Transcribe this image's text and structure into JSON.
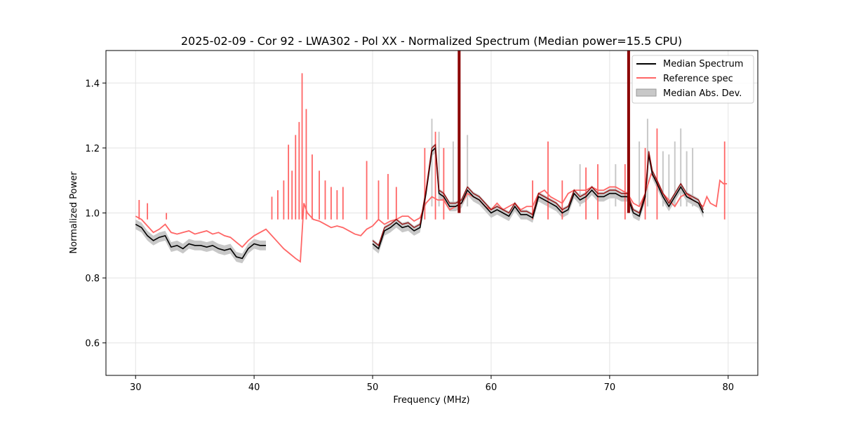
{
  "chart_data": {
    "type": "line",
    "title": "2025-02-09 - Cor 92 - LWA302 - Pol XX - Normalized Spectrum (Median power=15.5 CPU)",
    "xlabel": "Frequency (MHz)",
    "ylabel": "Normalized Power",
    "xlim": [
      27.5,
      82.5
    ],
    "ylim": [
      0.5,
      1.5
    ],
    "xticks": [
      30,
      40,
      50,
      60,
      70,
      80
    ],
    "yticks": [
      0.6,
      0.8,
      1.0,
      1.2,
      1.4
    ],
    "grid": true,
    "legend_position": "top-right",
    "colors": {
      "median": "#000000",
      "reference": "#ff6666",
      "mad": "#c8c8c8",
      "overlap": "#8b0000"
    },
    "series": [
      {
        "name": "Median Spectrum",
        "x": [
          30.0,
          30.5,
          31.0,
          31.5,
          32.0,
          32.5,
          33.0,
          33.5,
          34.0,
          34.5,
          35.0,
          35.5,
          36.0,
          36.5,
          37.0,
          37.5,
          38.0,
          38.5,
          39.0,
          39.5,
          40.0,
          40.5,
          41.0
        ],
        "y": [
          0.965,
          0.955,
          0.93,
          0.915,
          0.925,
          0.93,
          0.895,
          0.9,
          0.89,
          0.905,
          0.9,
          0.9,
          0.895,
          0.9,
          0.89,
          0.885,
          0.89,
          0.865,
          0.86,
          0.89,
          0.905,
          0.9,
          0.9
        ]
      },
      {
        "name": "Median Spectrum",
        "x": [
          50.0,
          50.5,
          51.0,
          51.5,
          52.0,
          52.5,
          53.0,
          53.5,
          54.0,
          54.5,
          55.0,
          55.3,
          55.6,
          56.0,
          56.5,
          57.0,
          57.5,
          58.0,
          58.5,
          59.0,
          59.5,
          60.0,
          60.5,
          61.0,
          61.5,
          62.0,
          62.5,
          63.0,
          63.5,
          64.0,
          64.5,
          65.0,
          65.5,
          66.0,
          66.5,
          67.0,
          67.5,
          68.0,
          68.5,
          69.0,
          69.5,
          70.0,
          70.5,
          71.0,
          71.5,
          72.0,
          72.5,
          73.0,
          73.3,
          73.6,
          74.0,
          74.5,
          75.0,
          75.5,
          76.0,
          76.5,
          77.0,
          77.5,
          77.9
        ],
        "y": [
          0.905,
          0.89,
          0.945,
          0.955,
          0.97,
          0.955,
          0.96,
          0.945,
          0.955,
          1.06,
          1.19,
          1.2,
          1.06,
          1.05,
          1.02,
          1.02,
          1.03,
          1.07,
          1.05,
          1.04,
          1.02,
          1.0,
          1.01,
          1.0,
          0.99,
          1.02,
          0.995,
          0.995,
          0.985,
          1.05,
          1.04,
          1.03,
          1.02,
          1.0,
          1.01,
          1.06,
          1.04,
          1.05,
          1.07,
          1.05,
          1.05,
          1.06,
          1.06,
          1.05,
          1.05,
          1.0,
          0.99,
          1.05,
          1.18,
          1.12,
          1.09,
          1.05,
          1.02,
          1.05,
          1.08,
          1.05,
          1.04,
          1.03,
          1.0
        ]
      },
      {
        "name": "Reference spec",
        "x": [
          30.0,
          30.5,
          31.0,
          31.5,
          32.0,
          32.5,
          33.0,
          33.5,
          34.0,
          34.5,
          35.0,
          35.5,
          36.0,
          36.5,
          37.0,
          37.5,
          38.0,
          38.5,
          39.0,
          39.5,
          40.0,
          40.5,
          41.0,
          41.5,
          42.0,
          42.5,
          43.0,
          43.5,
          43.9,
          44.2,
          44.5,
          45.0,
          45.5,
          46.0,
          46.5,
          47.0,
          47.5,
          48.0,
          48.5,
          49.0,
          49.5,
          50.0,
          50.5,
          51.0,
          51.5,
          52.0,
          52.5,
          53.0,
          53.5,
          54.0,
          54.5,
          55.0,
          55.5,
          56.0,
          56.5,
          57.0,
          57.5,
          58.0,
          58.5,
          59.0,
          59.5,
          60.0,
          60.5,
          61.0,
          61.5,
          62.0,
          62.5,
          63.0,
          63.5,
          64.0,
          64.5,
          65.0,
          65.5,
          66.0,
          66.5,
          67.0,
          67.5,
          68.0,
          68.5,
          69.0,
          69.5,
          70.0,
          70.5,
          71.0,
          71.5,
          72.0,
          72.5,
          73.0,
          73.5,
          74.0,
          74.5,
          75.0,
          75.5,
          76.0,
          76.5,
          77.0,
          77.5,
          77.9,
          78.2,
          78.5,
          79.0,
          79.3,
          79.6,
          79.9
        ],
        "y": [
          0.99,
          0.98,
          0.96,
          0.94,
          0.95,
          0.965,
          0.94,
          0.935,
          0.94,
          0.945,
          0.935,
          0.94,
          0.945,
          0.935,
          0.94,
          0.93,
          0.925,
          0.91,
          0.895,
          0.915,
          0.93,
          0.94,
          0.95,
          0.93,
          0.91,
          0.89,
          0.875,
          0.86,
          0.85,
          1.03,
          1.0,
          0.98,
          0.975,
          0.965,
          0.955,
          0.96,
          0.955,
          0.945,
          0.935,
          0.93,
          0.95,
          0.96,
          0.98,
          0.965,
          0.975,
          0.98,
          0.99,
          0.99,
          0.975,
          0.985,
          1.03,
          1.05,
          1.04,
          1.04,
          1.01,
          1.02,
          1.03,
          1.06,
          1.05,
          1.04,
          1.02,
          1.01,
          1.03,
          1.01,
          1.02,
          1.03,
          1.01,
          1.02,
          1.02,
          1.06,
          1.07,
          1.05,
          1.04,
          1.03,
          1.06,
          1.07,
          1.07,
          1.07,
          1.08,
          1.07,
          1.07,
          1.08,
          1.08,
          1.07,
          1.06,
          1.03,
          1.02,
          1.06,
          1.12,
          1.1,
          1.06,
          1.04,
          1.02,
          1.05,
          1.06,
          1.04,
          1.03,
          1.02,
          1.05,
          1.03,
          1.02,
          1.1,
          1.09,
          1.09
        ]
      }
    ],
    "reference_spikes_x": [
      30.3,
      31.0,
      32.6,
      41.5,
      42.0,
      42.5,
      42.9,
      43.2,
      43.5,
      43.8,
      44.05,
      44.4,
      44.9,
      45.5,
      46.0,
      46.5,
      47.0,
      47.5,
      49.5,
      50.5,
      51.3,
      52.0,
      54.4,
      55.3,
      56.0,
      63.5,
      64.8,
      66.0,
      68.0,
      69.0,
      71.3,
      73.0,
      74.0,
      79.7
    ],
    "reference_spikes_y": [
      1.04,
      1.03,
      1.0,
      1.05,
      1.07,
      1.1,
      1.21,
      1.13,
      1.24,
      1.28,
      1.43,
      1.32,
      1.18,
      1.13,
      1.1,
      1.08,
      1.07,
      1.08,
      1.16,
      1.1,
      1.12,
      1.08,
      1.2,
      1.25,
      1.2,
      1.1,
      1.22,
      1.1,
      1.14,
      1.15,
      1.15,
      1.2,
      1.26,
      1.22
    ],
    "mad_spikes_x": [
      55.0,
      55.6,
      56.8,
      58.0,
      67.5,
      70.5,
      72.5,
      73.2,
      74.5,
      75.0,
      75.5,
      76.0,
      76.5,
      77.0
    ],
    "mad_spikes_y": [
      1.29,
      1.25,
      1.22,
      1.24,
      1.15,
      1.15,
      1.22,
      1.29,
      1.19,
      1.18,
      1.22,
      1.26,
      1.19,
      1.2
    ],
    "rfi_lines_x": [
      57.3,
      71.6
    ],
    "legend": {
      "median": "Median Spectrum",
      "reference": "Reference spec",
      "mad": "Median Abs. Dev."
    }
  }
}
